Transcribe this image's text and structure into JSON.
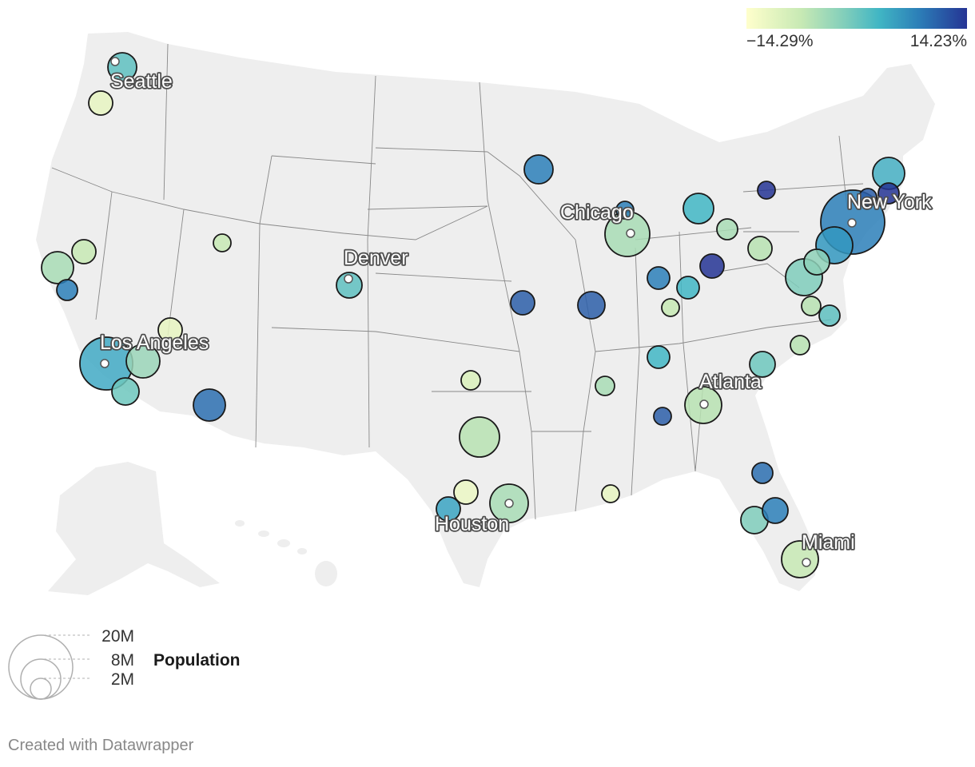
{
  "legend": {
    "color_min": "−14.29%",
    "color_max": "14.23%",
    "colors": [
      "#ffffcc",
      "#c7e9b4",
      "#7fcdbb",
      "#41b6c4",
      "#2c7fb8",
      "#253494"
    ],
    "size_title": "Population",
    "size_values": [
      "20M",
      "8M",
      "2M"
    ]
  },
  "labels": {
    "seattle": "Seattle",
    "denver": "Denver",
    "los_angeles": "Los Angeles",
    "chicago": "Chicago",
    "new_york": "New York",
    "atlanta": "Atlanta",
    "houston": "Houston",
    "miami": "Miami"
  },
  "footer": "Created with Datawrapper",
  "map_style": {
    "land": "#eeeeee",
    "borders": "#888888",
    "bubble_stroke": "#1a1a1a"
  }
}
